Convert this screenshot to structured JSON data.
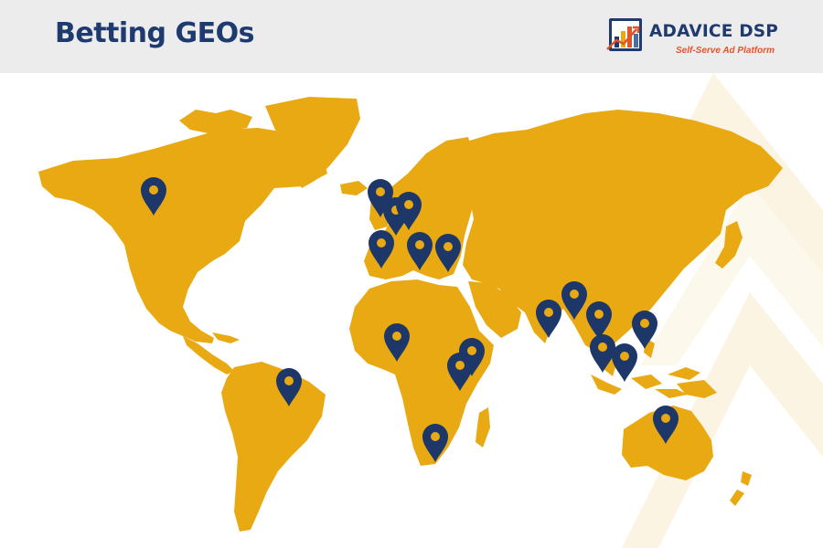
{
  "header": {
    "title": "Betting GEOs"
  },
  "logo": {
    "name": "ADAVICE DSP",
    "tagline": "Self-Serve Ad Platform"
  },
  "colors": {
    "title": "#1e3a6e",
    "logo_name": "#1e3a6e",
    "tagline": "#e2552a",
    "land": "#e8a913",
    "pin": "#1c3768",
    "pin_dot": "#e8a913",
    "header_bg": "#ececec",
    "decoration": "#faf2dc"
  },
  "icons": {
    "logo": "bar-chart-logo-icon",
    "marker": "map-pin-icon"
  },
  "markers": [
    {
      "name": "canada"
    },
    {
      "name": "ireland"
    },
    {
      "name": "united-kingdom"
    },
    {
      "name": "netherlands"
    },
    {
      "name": "spain"
    },
    {
      "name": "italy"
    },
    {
      "name": "greece"
    },
    {
      "name": "nigeria"
    },
    {
      "name": "kenya"
    },
    {
      "name": "tanzania"
    },
    {
      "name": "south-africa"
    },
    {
      "name": "brazil"
    },
    {
      "name": "india"
    },
    {
      "name": "nepal"
    },
    {
      "name": "myanmar"
    },
    {
      "name": "thailand"
    },
    {
      "name": "malaysia"
    },
    {
      "name": "philippines"
    },
    {
      "name": "australia"
    }
  ]
}
